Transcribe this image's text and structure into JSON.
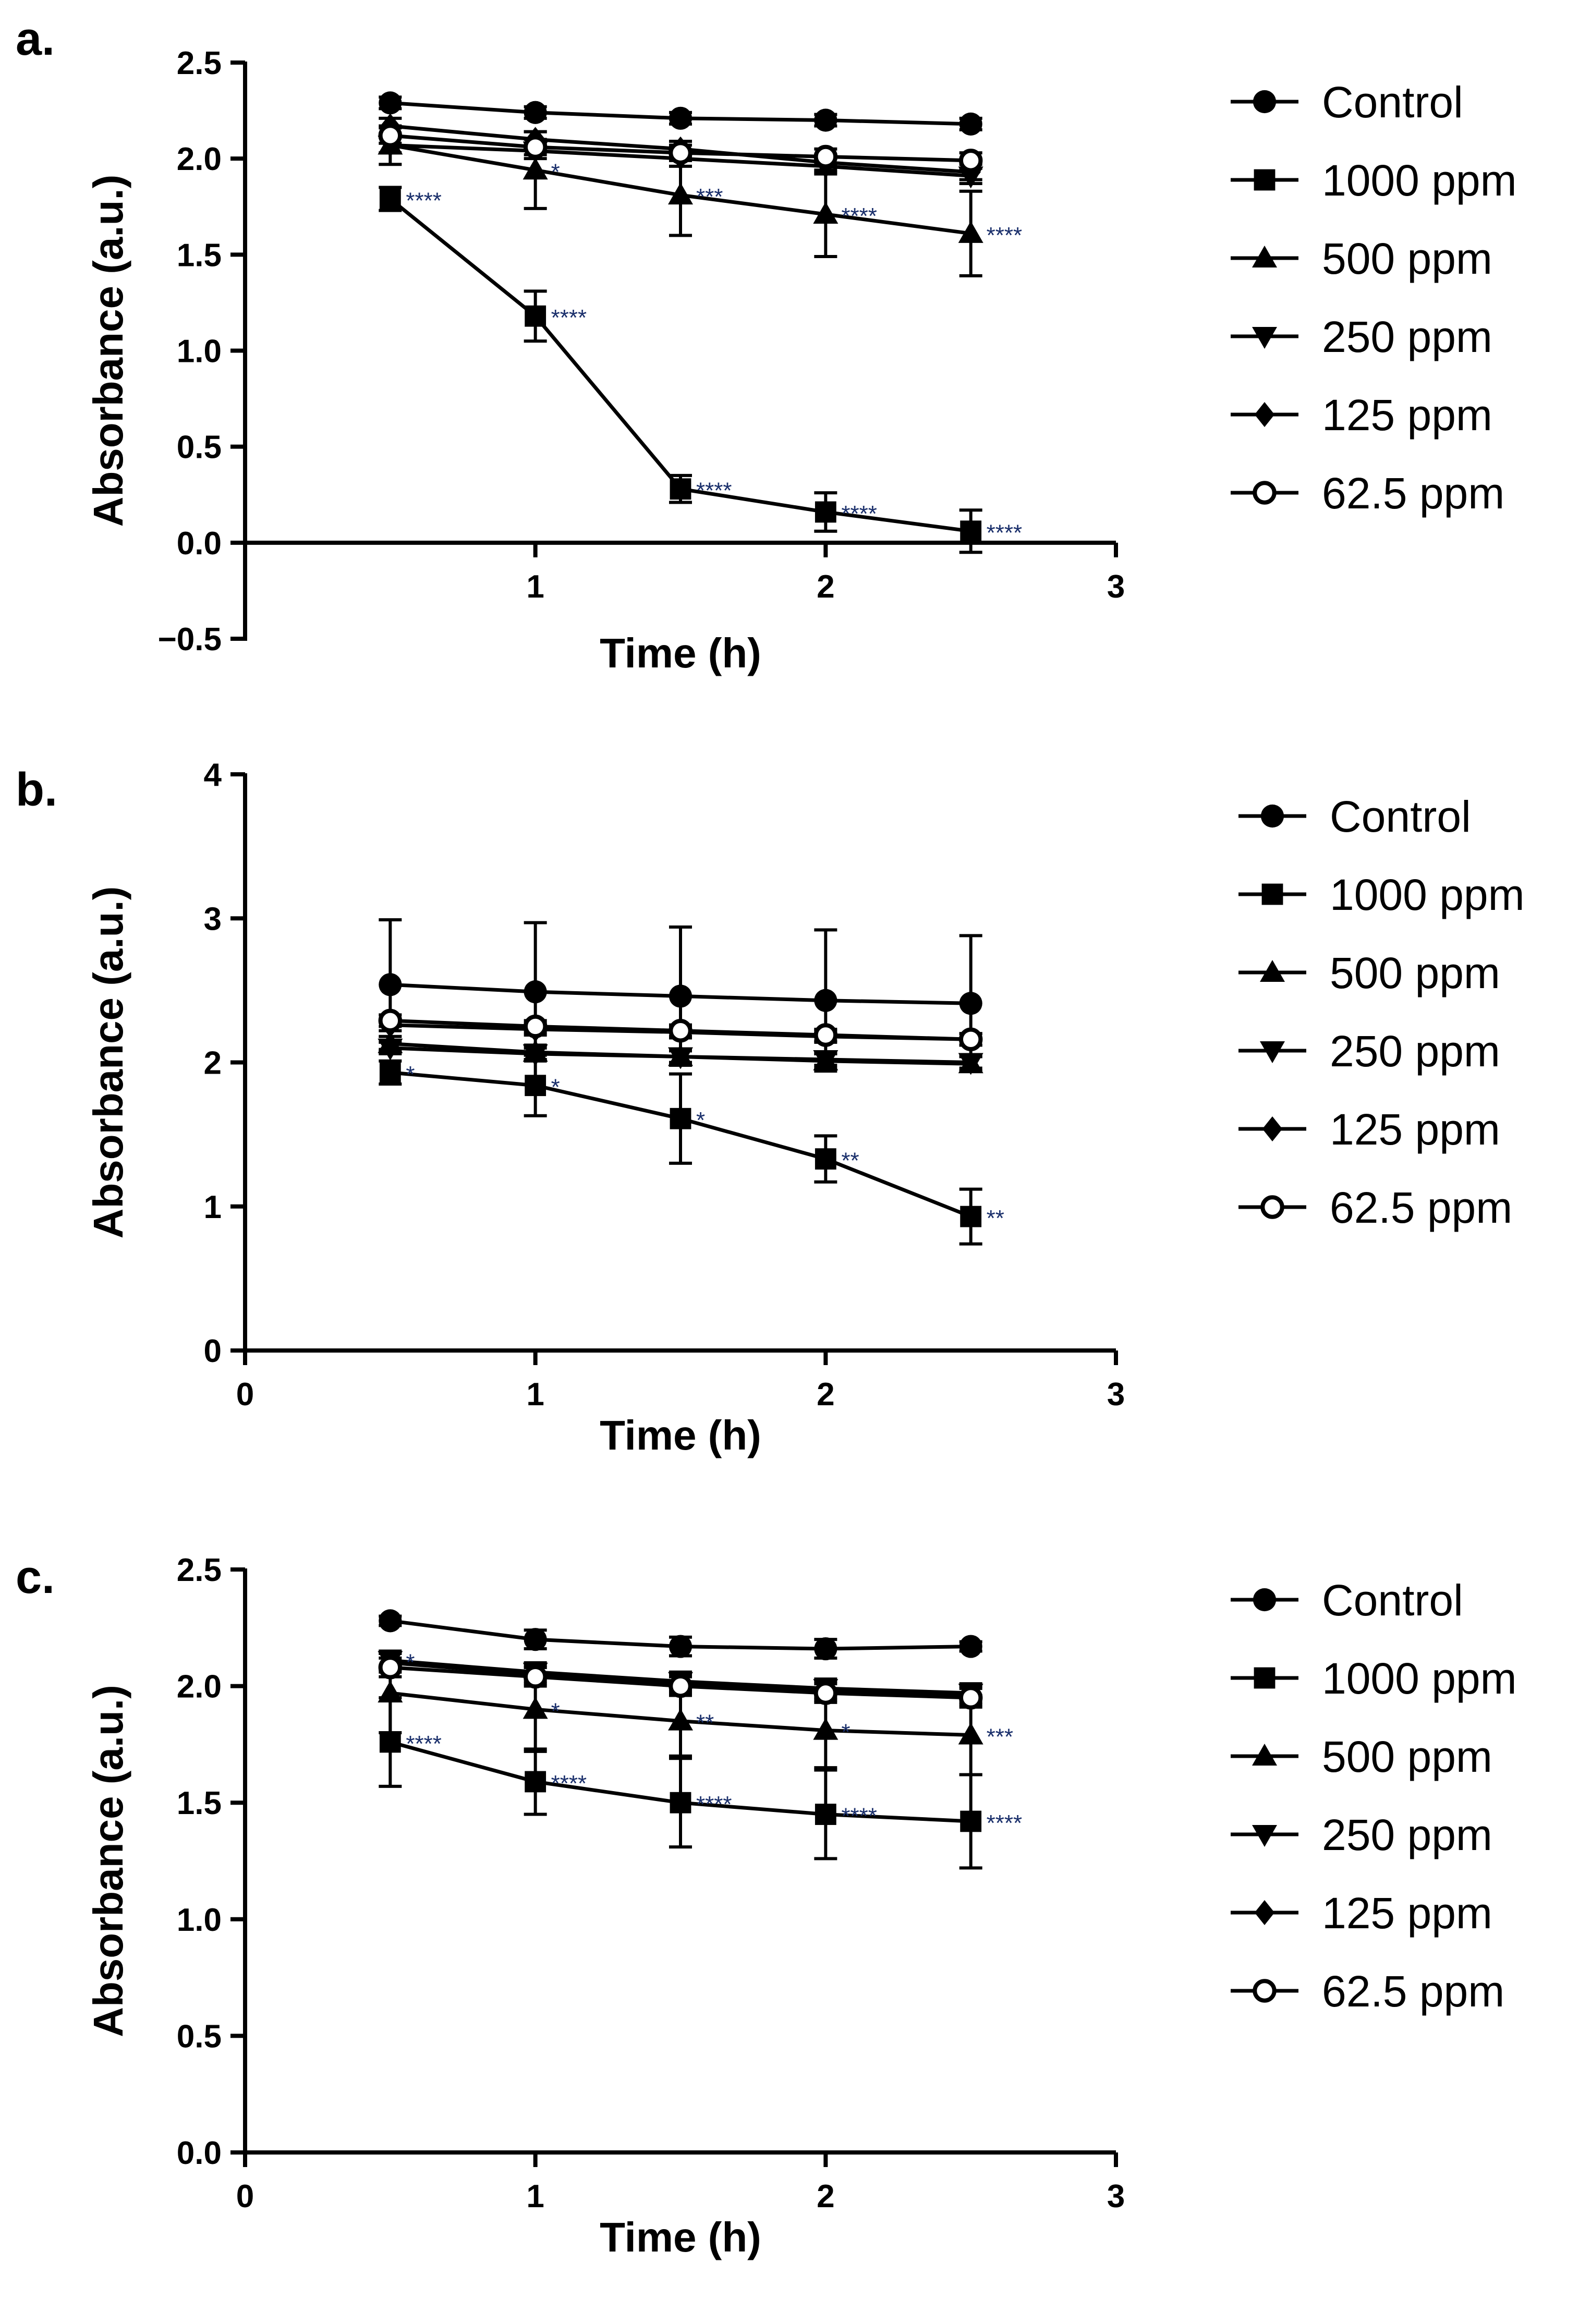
{
  "series_names": [
    "Control",
    "1000 ppm",
    "500 ppm",
    "250 ppm",
    "125 ppm",
    "62.5 ppm"
  ],
  "series_markers": [
    "circle",
    "square",
    "triangle-up",
    "triangle-down",
    "diamond",
    "circle-open"
  ],
  "colors": {
    "ink": "#000000",
    "significance": "#1a2f6b",
    "background": "#ffffff"
  },
  "chart_data": [
    {
      "panel": "a.",
      "type": "line",
      "xlabel": "Time (h)",
      "ylabel": "Absorbance (a.u.)",
      "xlim": [
        0,
        3
      ],
      "ylim": [
        -0.5,
        2.5
      ],
      "xticks": [
        1,
        2,
        3
      ],
      "yticks": [
        -0.5,
        0.0,
        0.5,
        1.0,
        1.5,
        2.0,
        2.5
      ],
      "ytick_labels": [
        "−0.5",
        "0.0",
        "0.5",
        "1.0",
        "1.5",
        "2.0",
        "2.5"
      ],
      "x": [
        0.5,
        1,
        1.5,
        2,
        2.5
      ],
      "legend_position": "right",
      "series": [
        {
          "name": "Control",
          "marker": "circle",
          "values": [
            2.29,
            2.24,
            2.21,
            2.2,
            2.18
          ],
          "errors": [
            0.03,
            0.03,
            0.03,
            0.03,
            0.03
          ],
          "sig": [
            "",
            "",
            "",
            "",
            ""
          ]
        },
        {
          "name": "1000 ppm",
          "marker": "square",
          "values": [
            1.79,
            1.18,
            0.28,
            0.16,
            0.06
          ],
          "errors": [
            0.06,
            0.13,
            0.07,
            0.1,
            0.11
          ],
          "sig": [
            "****",
            "****",
            "****",
            "****",
            "****"
          ]
        },
        {
          "name": "500 ppm",
          "marker": "triangle-up",
          "values": [
            2.07,
            1.94,
            1.81,
            1.71,
            1.61
          ],
          "errors": [
            0.1,
            0.2,
            0.21,
            0.22,
            0.22
          ],
          "sig": [
            "",
            "*",
            "***",
            "****",
            "****"
          ]
        },
        {
          "name": "250 ppm",
          "marker": "triangle-down",
          "values": [
            2.07,
            2.04,
            2.0,
            1.96,
            1.91
          ],
          "errors": [
            0.04,
            0.04,
            0.04,
            0.04,
            0.04
          ],
          "sig": [
            "",
            "",
            "",
            "",
            ""
          ]
        },
        {
          "name": "125 ppm",
          "marker": "diamond",
          "values": [
            2.17,
            2.1,
            2.05,
            1.98,
            1.93
          ],
          "errors": [
            0.04,
            0.04,
            0.04,
            0.04,
            0.04
          ],
          "sig": [
            "",
            "",
            "",
            "",
            ""
          ]
        },
        {
          "name": "62.5 ppm",
          "marker": "circle-open",
          "values": [
            2.12,
            2.06,
            2.03,
            2.01,
            1.99
          ],
          "errors": [
            0.04,
            0.04,
            0.04,
            0.04,
            0.04
          ],
          "sig": [
            "",
            "",
            "",
            "",
            ""
          ]
        }
      ]
    },
    {
      "panel": "b.",
      "type": "line",
      "xlabel": "Time (h)",
      "ylabel": "Absorbance (a.u.)",
      "xlim": [
        0,
        3
      ],
      "ylim": [
        0,
        4
      ],
      "xticks": [
        0,
        1,
        2,
        3
      ],
      "yticks": [
        0,
        1,
        2,
        3,
        4
      ],
      "ytick_labels": [
        "0",
        "1",
        "2",
        "3",
        "4"
      ],
      "x": [
        0.5,
        1,
        1.5,
        2,
        2.5
      ],
      "legend_position": "right",
      "series": [
        {
          "name": "Control",
          "marker": "circle",
          "values": [
            2.54,
            2.49,
            2.46,
            2.43,
            2.41
          ],
          "errors": [
            0.45,
            0.48,
            0.48,
            0.49,
            0.47
          ],
          "sig": [
            "",
            "",
            "",
            "",
            ""
          ]
        },
        {
          "name": "1000 ppm",
          "marker": "square",
          "values": [
            1.93,
            1.84,
            1.61,
            1.33,
            0.93
          ],
          "errors": [
            0.08,
            0.21,
            0.31,
            0.16,
            0.19
          ],
          "sig": [
            "*",
            "*",
            "*",
            "**",
            "**"
          ]
        },
        {
          "name": "500 ppm",
          "marker": "triangle-up",
          "values": [
            2.13,
            2.07,
            2.04,
            2.01,
            1.99
          ],
          "errors": [
            0.05,
            0.05,
            0.05,
            0.05,
            0.05
          ],
          "sig": [
            "",
            "",
            "",
            "",
            ""
          ]
        },
        {
          "name": "250 ppm",
          "marker": "triangle-down",
          "values": [
            2.1,
            2.06,
            2.04,
            2.02,
            2.0
          ],
          "errors": [
            0.04,
            0.04,
            0.04,
            0.04,
            0.04
          ],
          "sig": [
            "",
            "",
            "",
            "",
            ""
          ]
        },
        {
          "name": "125 ppm",
          "marker": "diamond",
          "values": [
            2.26,
            2.23,
            2.21,
            2.18,
            2.16
          ],
          "errors": [
            0.04,
            0.04,
            0.04,
            0.04,
            0.04
          ],
          "sig": [
            "",
            "",
            "",
            "",
            ""
          ]
        },
        {
          "name": "62.5 ppm",
          "marker": "circle-open",
          "values": [
            2.29,
            2.25,
            2.22,
            2.19,
            2.16
          ],
          "errors": [
            0.04,
            0.04,
            0.04,
            0.04,
            0.04
          ],
          "sig": [
            "",
            "",
            "",
            "",
            ""
          ]
        }
      ]
    },
    {
      "panel": "c.",
      "type": "line",
      "xlabel": "Time (h)",
      "ylabel": "Absorbance (a.u.)",
      "xlim": [
        0,
        3
      ],
      "ylim": [
        0,
        2.5
      ],
      "xticks": [
        0,
        1,
        2,
        3
      ],
      "yticks": [
        0.0,
        0.5,
        1.0,
        1.5,
        2.0,
        2.5
      ],
      "ytick_labels": [
        "0.0",
        "0.5",
        "1.0",
        "1.5",
        "2.0",
        "2.5"
      ],
      "x": [
        0.5,
        1,
        1.5,
        2,
        2.5
      ],
      "legend_position": "right",
      "series": [
        {
          "name": "Control",
          "marker": "circle",
          "values": [
            2.28,
            2.2,
            2.17,
            2.16,
            2.17
          ],
          "errors": [
            0.02,
            0.04,
            0.04,
            0.04,
            0.02
          ],
          "sig": [
            "",
            "",
            "",
            "",
            ""
          ]
        },
        {
          "name": "1000 ppm",
          "marker": "square",
          "values": [
            1.76,
            1.59,
            1.5,
            1.45,
            1.42
          ],
          "errors": [
            0.19,
            0.14,
            0.19,
            0.19,
            0.2
          ],
          "sig": [
            "****",
            "****",
            "****",
            "****",
            "****"
          ]
        },
        {
          "name": "500 ppm",
          "marker": "triangle-up",
          "values": [
            1.97,
            1.9,
            1.85,
            1.81,
            1.79
          ],
          "errors": [
            0.17,
            0.18,
            0.15,
            0.16,
            0.17
          ],
          "sig": [
            "",
            "*",
            "**",
            "*",
            "***"
          ]
        },
        {
          "name": "250 ppm",
          "marker": "triangle-down",
          "values": [
            2.11,
            2.06,
            2.02,
            1.99,
            1.97
          ],
          "errors": [
            0.04,
            0.04,
            0.04,
            0.04,
            0.04
          ],
          "sig": [
            "*",
            "",
            "",
            "",
            ""
          ]
        },
        {
          "name": "125 ppm",
          "marker": "diamond",
          "values": [
            2.1,
            2.05,
            2.01,
            1.98,
            1.96
          ],
          "errors": [
            0.04,
            0.04,
            0.04,
            0.04,
            0.04
          ],
          "sig": [
            "",
            "",
            "",
            "",
            ""
          ]
        },
        {
          "name": "62.5 ppm",
          "marker": "circle-open",
          "values": [
            2.08,
            2.04,
            2.0,
            1.97,
            1.95
          ],
          "errors": [
            0.04,
            0.04,
            0.04,
            0.04,
            0.04
          ],
          "sig": [
            "",
            "",
            "",
            "",
            ""
          ]
        }
      ]
    }
  ]
}
